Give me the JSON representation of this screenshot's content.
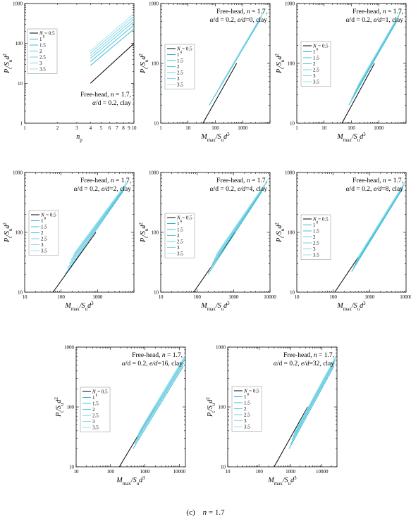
{
  "caption": {
    "label": "(c)",
    "var": "n",
    "eq": "= 1.7"
  },
  "legend_colors": [
    "#000000",
    "#2ab5d1",
    "#45bfd8",
    "#5ac8de",
    "#6fd0e4",
    "#86d8ea",
    "#9fe0ef"
  ],
  "chart_data": [
    {
      "id": "p1",
      "type": "line",
      "xscale": "log",
      "yscale": "log",
      "xlim": [
        1,
        10
      ],
      "ylim": [
        1,
        1000
      ],
      "xticks": [
        "1",
        "2",
        "3",
        "4",
        "5",
        "6",
        "7",
        "8",
        "9",
        "10"
      ],
      "yticks": [
        "1",
        "10",
        "100",
        "1000"
      ],
      "xlabel": {
        "main": "n",
        "sub": "p",
        "sup": ""
      },
      "ylabel": {
        "main": "P",
        "sub": "t",
        "mid": "/S",
        "sub2": "u",
        "tail": "d",
        "sup": "2"
      },
      "annotation": [
        "Free-head,  n = 1.7,",
        "α/d = 0.2,  clay"
      ],
      "annotation_pos": "bottom-right",
      "legend_title": "N",
      "legend_title_sub": "g",
      "series": [
        {
          "name": "= 0.5",
          "x": [
            4,
            10
          ],
          "y": [
            10,
            100
          ]
        },
        {
          "name": "1",
          "x": [
            4,
            10
          ],
          "y": [
            28,
            230
          ]
        },
        {
          "name": "1.5",
          "x": [
            4,
            10
          ],
          "y": [
            35,
            290
          ]
        },
        {
          "name": "2",
          "x": [
            4,
            10
          ],
          "y": [
            42,
            350
          ]
        },
        {
          "name": "2.5",
          "x": [
            4,
            10
          ],
          "y": [
            49,
            410
          ]
        },
        {
          "name": "3",
          "x": [
            4,
            10
          ],
          "y": [
            57,
            480
          ]
        },
        {
          "name": "3.5",
          "x": [
            4,
            10
          ],
          "y": [
            65,
            560
          ]
        }
      ]
    },
    {
      "id": "p2",
      "type": "line",
      "xscale": "log",
      "yscale": "log",
      "xlim": [
        1,
        10000
      ],
      "ylim": [
        10,
        1000
      ],
      "xticks": [
        "1",
        "10",
        "100",
        "1000"
      ],
      "yticks": [
        "10",
        "100",
        "1000"
      ],
      "xlabel": {
        "main": "M",
        "sub": "max",
        "mid": "/S",
        "sub2": "u",
        "tail": "d",
        "sup": "3"
      },
      "ylabel": {
        "main": "P",
        "sub": "t",
        "mid": "/S",
        "sub2": "u",
        "tail": "d",
        "sup": "2"
      },
      "annotation": [
        "Free-head,  n = 1.7,",
        "α/d = 0.2,  e/d=0,  clay"
      ],
      "annotation_pos": "top-right",
      "legend_title": "N",
      "legend_title_sub": "g",
      "series": [
        {
          "name": "= 0.5",
          "x": [
            35,
            600
          ],
          "y": [
            10,
            100
          ]
        },
        {
          "name": "1",
          "x": [
            60,
            4000
          ],
          "y": [
            20,
            500
          ]
        },
        {
          "name": "1.5",
          "x": [
            80,
            4500
          ],
          "y": [
            25,
            560
          ]
        },
        {
          "name": "2",
          "x": [
            100,
            5000
          ],
          "y": [
            30,
            620
          ]
        },
        {
          "name": "2.5",
          "x": [
            120,
            5500
          ],
          "y": [
            35,
            680
          ]
        },
        {
          "name": "3",
          "x": [
            140,
            6000
          ],
          "y": [
            40,
            740
          ]
        },
        {
          "name": "3.5",
          "x": [
            160,
            6500
          ],
          "y": [
            45,
            800
          ]
        }
      ]
    },
    {
      "id": "p3",
      "type": "line",
      "xscale": "log",
      "yscale": "log",
      "xlim": [
        1,
        10000
      ],
      "ylim": [
        10,
        1000
      ],
      "xticks": [
        "1",
        "10",
        "100",
        "1000"
      ],
      "yticks": [
        "10",
        "100",
        "1000"
      ],
      "xlabel": {
        "main": "M",
        "sub": "max",
        "mid": "/S",
        "sub2": "u",
        "tail": "d",
        "sup": "3"
      },
      "ylabel": {
        "main": "P",
        "sub": "t",
        "mid": "/S",
        "sub2": "u",
        "tail": "d",
        "sup": "2"
      },
      "annotation": [
        "Free-head,  n = 1.7,",
        "α/d = 0.2,  e/d=1,  clay"
      ],
      "annotation_pos": "top-right",
      "legend_title": "N",
      "legend_title_sub": "g",
      "series": [
        {
          "name": "= 0.5",
          "x": [
            45,
            700
          ],
          "y": [
            10,
            100
          ]
        },
        {
          "name": "1",
          "x": [
            80,
            4500
          ],
          "y": [
            20,
            500
          ]
        },
        {
          "name": "1.5",
          "x": [
            100,
            5000
          ],
          "y": [
            25,
            560
          ]
        },
        {
          "name": "2",
          "x": [
            120,
            5500
          ],
          "y": [
            30,
            620
          ]
        },
        {
          "name": "2.5",
          "x": [
            140,
            6000
          ],
          "y": [
            35,
            680
          ]
        },
        {
          "name": "3",
          "x": [
            160,
            6500
          ],
          "y": [
            40,
            740
          ]
        },
        {
          "name": "3.5",
          "x": [
            180,
            7000
          ],
          "y": [
            45,
            800
          ]
        }
      ]
    },
    {
      "id": "p4",
      "type": "line",
      "xscale": "log",
      "yscale": "log",
      "xlim": [
        10,
        10000
      ],
      "ylim": [
        10,
        1000
      ],
      "xticks": [
        "10",
        "100",
        "1000"
      ],
      "yticks": [
        "10",
        "100",
        "1000"
      ],
      "xlabel": {
        "main": "M",
        "sub": "max",
        "mid": "/S",
        "sub2": "u",
        "tail": "d",
        "sup": "3"
      },
      "ylabel": {
        "main": "P",
        "sub": "t",
        "mid": "/S",
        "sub2": "u",
        "tail": "d",
        "sup": "2"
      },
      "annotation": [
        "Free-head,  n = 1.7,",
        "α/d = 0.2,  e/d=2,  clay"
      ],
      "annotation_pos": "top-right",
      "legend_title": "N",
      "legend_title_sub": "g",
      "series": [
        {
          "name": "= 0.5",
          "x": [
            60,
            900
          ],
          "y": [
            10,
            100
          ]
        },
        {
          "name": "1",
          "x": [
            130,
            5000
          ],
          "y": [
            20,
            480
          ]
        },
        {
          "name": "1.5",
          "x": [
            150,
            5500
          ],
          "y": [
            25,
            540
          ]
        },
        {
          "name": "2",
          "x": [
            170,
            6000
          ],
          "y": [
            30,
            600
          ]
        },
        {
          "name": "2.5",
          "x": [
            190,
            6500
          ],
          "y": [
            35,
            660
          ]
        },
        {
          "name": "3",
          "x": [
            210,
            7000
          ],
          "y": [
            40,
            720
          ]
        },
        {
          "name": "3.5",
          "x": [
            230,
            7500
          ],
          "y": [
            45,
            780
          ]
        }
      ]
    },
    {
      "id": "p5",
      "type": "line",
      "xscale": "log",
      "yscale": "log",
      "xlim": [
        10,
        10000
      ],
      "ylim": [
        10,
        1000
      ],
      "xticks": [
        "10",
        "100",
        "1000",
        "10000"
      ],
      "yticks": [
        "10",
        "100",
        "1000"
      ],
      "xlabel": {
        "main": "M",
        "sub": "max",
        "mid": "/S",
        "sub2": "u",
        "tail": "d",
        "sup": "3"
      },
      "ylabel": {
        "main": "P",
        "sub": "t",
        "mid": "/S",
        "sub2": "u",
        "tail": "d",
        "sup": "2"
      },
      "annotation": [
        "Free-head,  n = 1.7,",
        "α/d = 0.2,  e/d=4,  clay"
      ],
      "annotation_pos": "top-right",
      "legend_title": "N",
      "legend_title_sub": "g",
      "series": [
        {
          "name": "= 0.5",
          "x": [
            80,
            1100
          ],
          "y": [
            10,
            100
          ]
        },
        {
          "name": "1",
          "x": [
            200,
            6000
          ],
          "y": [
            20,
            480
          ]
        },
        {
          "name": "1.5",
          "x": [
            230,
            6600
          ],
          "y": [
            25,
            540
          ]
        },
        {
          "name": "2",
          "x": [
            260,
            7200
          ],
          "y": [
            30,
            600
          ]
        },
        {
          "name": "2.5",
          "x": [
            290,
            7800
          ],
          "y": [
            35,
            660
          ]
        },
        {
          "name": "3",
          "x": [
            320,
            8400
          ],
          "y": [
            40,
            720
          ]
        },
        {
          "name": "3.5",
          "x": [
            350,
            9000
          ],
          "y": [
            45,
            780
          ]
        }
      ]
    },
    {
      "id": "p6",
      "type": "line",
      "xscale": "log",
      "yscale": "log",
      "xlim": [
        10,
        10000
      ],
      "ylim": [
        10,
        1000
      ],
      "xticks": [
        "10",
        "100",
        "1000",
        "10000"
      ],
      "yticks": [
        "10",
        "100",
        "1000"
      ],
      "xlabel": {
        "main": "M",
        "sub": "max",
        "mid": "/S",
        "sub2": "u",
        "tail": "d",
        "sup": "3"
      },
      "ylabel": {
        "main": "P",
        "sub": "t",
        "mid": "/S",
        "sub2": "u",
        "tail": "d",
        "sup": "2"
      },
      "annotation": [
        "Free-head,  n = 1.7,",
        "α/d = 0.2,  e/d=8,  clay"
      ],
      "annotation_pos": "top-right",
      "legend_title": "N",
      "legend_title_sub": "g",
      "series": [
        {
          "name": "= 0.5",
          "x": [
            110,
            1400
          ],
          "y": [
            10,
            100
          ]
        },
        {
          "name": "1",
          "x": [
            320,
            7500
          ],
          "y": [
            22,
            500
          ]
        },
        {
          "name": "1.5",
          "x": [
            360,
            8000
          ],
          "y": [
            26,
            550
          ]
        },
        {
          "name": "2",
          "x": [
            400,
            8500
          ],
          "y": [
            30,
            600
          ]
        },
        {
          "name": "2.5",
          "x": [
            440,
            9000
          ],
          "y": [
            34,
            650
          ]
        },
        {
          "name": "3",
          "x": [
            480,
            9500
          ],
          "y": [
            38,
            700
          ]
        },
        {
          "name": "3.5",
          "x": [
            520,
            9900
          ],
          "y": [
            42,
            750
          ]
        }
      ]
    },
    {
      "id": "p7",
      "type": "line",
      "xscale": "log",
      "yscale": "log",
      "xlim": [
        10,
        15000
      ],
      "ylim": [
        10,
        1000
      ],
      "xticks": [
        "10",
        "100",
        "1000",
        "10000"
      ],
      "yticks": [
        "10",
        "100",
        "1000"
      ],
      "xlabel": {
        "main": "M",
        "sub": "max",
        "mid": "/S",
        "sub2": "u",
        "tail": "d",
        "sup": "3"
      },
      "ylabel": {
        "main": "P",
        "sub": "t",
        "mid": "/S",
        "sub2": "u",
        "tail": "d",
        "sup": "2"
      },
      "annotation": [
        "Free-head,  n = 1.7,",
        "α/d = 0.2,  e/d=16,  clay"
      ],
      "annotation_pos": "top-right",
      "legend_title": "N",
      "legend_title_sub": "g",
      "series": [
        {
          "name": "= 0.5",
          "x": [
            180,
            2000
          ],
          "y": [
            10,
            100
          ]
        },
        {
          "name": "1",
          "x": [
            450,
            13000
          ],
          "y": [
            20,
            480
          ]
        },
        {
          "name": "1.5",
          "x": [
            500,
            13500
          ],
          "y": [
            24,
            540
          ]
        },
        {
          "name": "2",
          "x": [
            550,
            14000
          ],
          "y": [
            28,
            600
          ]
        },
        {
          "name": "2.5",
          "x": [
            600,
            14500
          ],
          "y": [
            32,
            650
          ]
        },
        {
          "name": "3",
          "x": [
            650,
            14800
          ],
          "y": [
            36,
            700
          ]
        },
        {
          "name": "3.5",
          "x": [
            700,
            15000
          ],
          "y": [
            40,
            740
          ]
        }
      ]
    },
    {
      "id": "p8",
      "type": "line",
      "xscale": "log",
      "yscale": "log",
      "xlim": [
        10,
        30000
      ],
      "ylim": [
        10,
        1000
      ],
      "xticks": [
        "10",
        "100",
        "1000",
        "10000"
      ],
      "yticks": [
        "10",
        "100",
        "1000"
      ],
      "xlabel": {
        "main": "M",
        "sub": "max",
        "mid": "/S",
        "sub2": "u",
        "tail": "d",
        "sup": "3"
      },
      "ylabel": {
        "main": "P",
        "sub": "t",
        "mid": "/S",
        "sub2": "u",
        "tail": "d",
        "sup": "2"
      },
      "annotation": [
        "Free-head,  n = 1.7,",
        "α/d = 0.2,  e/d=32,  clay"
      ],
      "annotation_pos": "top-right",
      "legend_title": "N",
      "legend_title_sub": "g",
      "series": [
        {
          "name": "= 0.5",
          "x": [
            300,
            3500
          ],
          "y": [
            10,
            100
          ]
        },
        {
          "name": "1",
          "x": [
            900,
            24000
          ],
          "y": [
            20,
            480
          ]
        },
        {
          "name": "1.5",
          "x": [
            1000,
            25000
          ],
          "y": [
            24,
            540
          ]
        },
        {
          "name": "2",
          "x": [
            1100,
            26000
          ],
          "y": [
            28,
            600
          ]
        },
        {
          "name": "2.5",
          "x": [
            1200,
            27000
          ],
          "y": [
            32,
            650
          ]
        },
        {
          "name": "3",
          "x": [
            1300,
            28000
          ],
          "y": [
            36,
            700
          ]
        },
        {
          "name": "3.5",
          "x": [
            1400,
            29000
          ],
          "y": [
            40,
            740
          ]
        }
      ]
    }
  ]
}
